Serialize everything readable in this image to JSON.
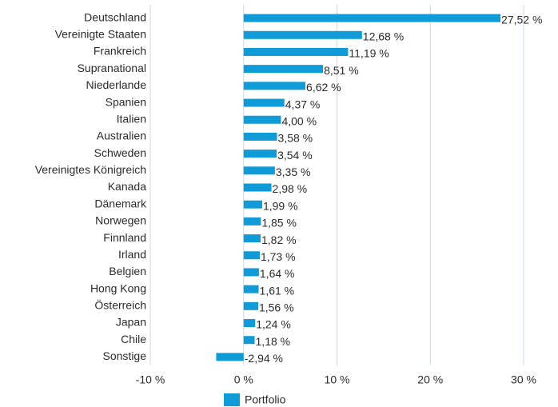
{
  "chart_data": {
    "type": "bar",
    "orientation": "horizontal",
    "categories": [
      "Deutschland",
      "Vereinigte Staaten",
      "Frankreich",
      "Supranational",
      "Niederlande",
      "Spanien",
      "Italien",
      "Australien",
      "Schweden",
      "Vereinigtes Königreich",
      "Kanada",
      "Dänemark",
      "Norwegen",
      "Finnland",
      "Irland",
      "Belgien",
      "Hong Kong",
      "Österreich",
      "Japan",
      "Chile",
      "Sonstige"
    ],
    "series": [
      {
        "name": "Portfolio",
        "color": "#0f9bd7",
        "values": [
          27.52,
          12.68,
          11.19,
          8.51,
          6.62,
          4.37,
          4.0,
          3.58,
          3.54,
          3.35,
          2.98,
          1.99,
          1.85,
          1.82,
          1.73,
          1.64,
          1.61,
          1.56,
          1.24,
          1.18,
          -2.94
        ],
        "value_labels": [
          "27,52 %",
          "12,68 %",
          "11,19 %",
          "8,51 %",
          "6,62 %",
          "4,37 %",
          "4,00 %",
          "3,58 %",
          "3,54 %",
          "3,35 %",
          "2,98 %",
          "1,99 %",
          "1,85 %",
          "1,82 %",
          "1,73 %",
          "1,64 %",
          "1,61 %",
          "1,56 %",
          "1,24 %",
          "1,18 %",
          "-2,94 %"
        ]
      }
    ],
    "xlim": [
      -10,
      30
    ],
    "xticks": [
      {
        "value": -10,
        "label": "-10 %"
      },
      {
        "value": 0,
        "label": "0 %"
      },
      {
        "value": 10,
        "label": "10 %"
      },
      {
        "value": 20,
        "label": "20 %"
      },
      {
        "value": 30,
        "label": "30 %"
      }
    ],
    "grid": true,
    "legend": "bottom"
  }
}
